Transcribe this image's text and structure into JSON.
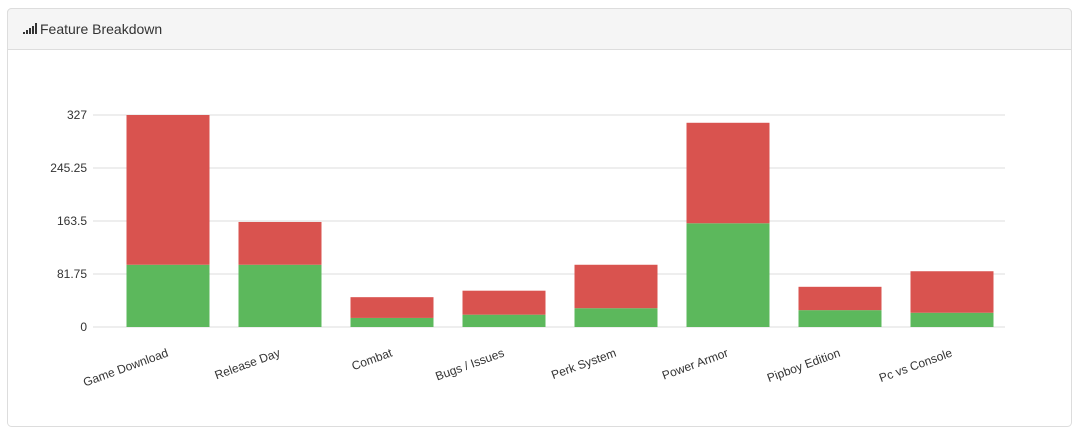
{
  "chart_data": {
    "type": "stacked_bar",
    "title": "Feature Breakdown",
    "categories": [
      "Game Download",
      "Release Day",
      "Combat",
      "Bugs / Issues",
      "Perk System",
      "Power Armor",
      "Pipboy Edition",
      "Pc vs Console"
    ],
    "series": [
      {
        "color": "#5cb85c",
        "values": [
          96,
          96,
          14,
          19,
          29,
          160,
          26,
          22
        ]
      },
      {
        "color": "#d9534f",
        "values": [
          231,
          66,
          32,
          37,
          67,
          155,
          36,
          64
        ]
      }
    ],
    "ylim": [
      0,
      327
    ],
    "yticks": [
      0,
      81.75,
      163.5,
      245.25,
      327
    ],
    "grid": true
  }
}
